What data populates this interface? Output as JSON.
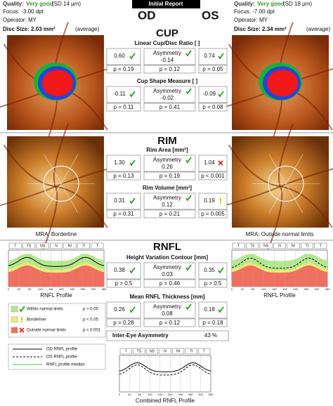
{
  "header": {
    "title": "Initial Report",
    "od": "OD",
    "os": "OS"
  },
  "od_info": {
    "quality_label": "Quality:",
    "quality": "Very good",
    "sd": "(SD 14 µm)",
    "focus": "Focus: -3.00 dpt",
    "operator": "Operator: MY",
    "disc_size": "Disc Size: 2.03 mm²",
    "disc_class": "(average)"
  },
  "os_info": {
    "quality_label": "Quality:",
    "quality": "Very good",
    "sd": "(SD 18 µm)",
    "focus": "Focus: -7.00 dpt",
    "operator": "Operator: MY",
    "disc_size": "Disc Size: 2.34 mm²",
    "disc_class": "(average)"
  },
  "sections": [
    {
      "title": "CUP",
      "metrics": [
        {
          "name": "Linear Cup/Disc Ratio [ ]",
          "od": "0.60",
          "asym_label": "Asymmetry",
          "asym": "-0.14",
          "os": "0.74",
          "p": [
            "p = 0.19",
            "p = 0.12",
            "p = 0.05"
          ]
        },
        {
          "name": "Cup Shape Measure [ ]",
          "od": "-0.11",
          "asym_label": "Asymmetry",
          "asym": "-0.02",
          "os": "-0.09",
          "p": [
            "p = 0.11",
            "p = 0.41",
            "p = 0.08"
          ]
        }
      ]
    },
    {
      "title": "RIM",
      "metrics": [
        {
          "name": "Rim Area [mm²]",
          "od": "1.30",
          "asym_label": "Asymmetry",
          "asym": "0.26",
          "os": "1.04",
          "p": [
            "p = 0.13",
            "p = 0.19",
            "p < 0.001"
          ]
        },
        {
          "name": "Rim Volume [mm³]",
          "od": "0.31",
          "asym_label": "Asymmetry",
          "asym": "0.12",
          "os": "0.19",
          "p": [
            "p = 0.31",
            "p = 0.21",
            "p = 0.005"
          ]
        }
      ]
    },
    {
      "title": "RNFL",
      "metrics": [
        {
          "name": "Height Variation Contour [mm]",
          "od": "0.38",
          "asym_label": "Asymmetry",
          "asym": "0.03",
          "os": "0.35",
          "p": [
            "p > 0.5",
            "p = 0.46",
            "p > 0.5"
          ]
        },
        {
          "name": "Mean RNFL Thickness [mm]",
          "od": "0.26",
          "asym_label": "Asymmetry",
          "asym": "0.08",
          "os": "0.18",
          "p": [
            "p = 0.28",
            "p = 0.12",
            "p = 0.18"
          ]
        }
      ]
    }
  ],
  "mra": [
    "MRA: Borderline",
    "MRA: Outside normal limits"
  ],
  "profile_titles": [
    "RNFL Profile",
    "RNFL Profile",
    "Combined RNFL Profile"
  ],
  "sectors": [
    "T",
    "TS",
    "NS",
    "N",
    "NI",
    "TI",
    "T"
  ],
  "xticks": [
    0,
    40,
    80,
    120,
    160,
    200,
    240,
    280,
    320,
    360
  ],
  "legend": [
    {
      "label": "Within normal limits",
      "p": "p > 0.05"
    },
    {
      "label": "Borderline",
      "p": "p < 0.05"
    },
    {
      "label": "Outside normal limits",
      "p": "p < 0.001"
    }
  ],
  "line_legend": [
    "OD RNFL profile",
    "OS RNFL profile",
    "RNFL profile median"
  ],
  "inter_eye": {
    "label": "Inter-Eye Asymmetry",
    "value": "43 %"
  }
}
